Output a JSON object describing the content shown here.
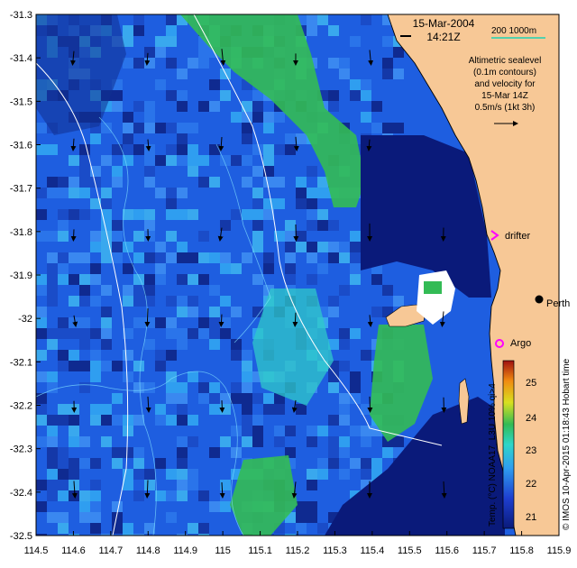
{
  "map": {
    "datetime_line1": "15-Mar-2004",
    "datetime_line2": "14:21Z",
    "scale_label": "200 1000m",
    "legend_lines": [
      "Altimetric sealevel",
      "(0.1m contours)",
      "and velocity for",
      "15-Mar 14Z",
      "0.5m/s (1kt 3h)"
    ],
    "drifter_label": "drifter",
    "city_label": "Perth",
    "argo_label": "Argo",
    "colorbar_title": "Temp. (°C) NOAA17_L3U 10% qi>4",
    "colorbar_ticks": [
      "25",
      "24",
      "23",
      "22",
      "21"
    ],
    "credit": "© IMOS 10-Apr-2015 01:18:43 Hobart time",
    "x_ticks": [
      "114.5",
      "114.6",
      "114.7",
      "114.8",
      "114.9",
      "115",
      "115.1",
      "115.2",
      "115.3",
      "115.4",
      "115.5",
      "115.6",
      "115.7",
      "115.8",
      "115.9"
    ],
    "y_ticks": [
      "-31.3",
      "-31.4",
      "-31.5",
      "-31.6",
      "-31.7",
      "-31.8",
      "-31.9",
      "-32",
      "-32.1",
      "-32.2",
      "-32.3",
      "-32.4",
      "-32.5"
    ],
    "colors": {
      "land": "#f7c896",
      "deep_blue": "#0a1a7a",
      "blue": "#1e5ee0",
      "light_blue": "#2f9ef0",
      "cyan": "#2fc9c9",
      "green": "#33bb55",
      "contour": "#ffffff",
      "scale_bar": "#1fd3b3",
      "marker": "#ff00ff"
    }
  }
}
